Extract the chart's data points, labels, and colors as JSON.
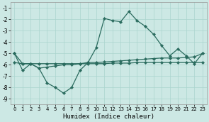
{
  "x": [
    0,
    1,
    2,
    3,
    4,
    5,
    6,
    7,
    8,
    9,
    10,
    11,
    12,
    13,
    14,
    15,
    16,
    17,
    18,
    19,
    20,
    21,
    22,
    23
  ],
  "line_flat": [
    -5.8,
    -5.9,
    -5.9,
    -5.9,
    -5.9,
    -5.9,
    -5.9,
    -5.9,
    -5.9,
    -5.9,
    -5.9,
    -5.9,
    -5.85,
    -5.85,
    -5.85,
    -5.8,
    -5.8,
    -5.8,
    -5.8,
    -5.8,
    -5.8,
    -5.8,
    -5.8,
    -5.8
  ],
  "line_peak": [
    -5.0,
    -6.5,
    -5.9,
    -6.3,
    -7.6,
    -8.0,
    -8.5,
    -8.0,
    -6.5,
    -5.8,
    -4.5,
    -1.9,
    -2.1,
    -2.2,
    -1.3,
    -2.1,
    -2.6,
    -3.3,
    -4.3,
    -5.2,
    -4.6,
    -5.2,
    -5.9,
    -5.0
  ],
  "line_slope": [
    -5.0,
    -5.9,
    -5.9,
    -6.3,
    -6.2,
    -6.1,
    -6.0,
    -6.0,
    -5.9,
    -5.8,
    -5.8,
    -5.75,
    -5.7,
    -5.65,
    -5.6,
    -5.55,
    -5.5,
    -5.45,
    -5.4,
    -5.4,
    -5.4,
    -5.35,
    -5.3,
    -5.0
  ],
  "line_color": "#2a6b5e",
  "bg_color": "#cce8e4",
  "grid_color": "#aad4ce",
  "xlabel": "Humidex (Indice chaleur)",
  "ylim": [
    -9.5,
    -0.5
  ],
  "xlim": [
    -0.5,
    23.5
  ],
  "yticks": [
    -9,
    -8,
    -7,
    -6,
    -5,
    -4,
    -3,
    -2,
    -1
  ],
  "xticks": [
    0,
    1,
    2,
    3,
    4,
    5,
    6,
    7,
    8,
    9,
    10,
    11,
    12,
    13,
    14,
    15,
    16,
    17,
    18,
    19,
    20,
    21,
    22,
    23
  ],
  "markersize": 2.2,
  "linewidth": 0.9
}
